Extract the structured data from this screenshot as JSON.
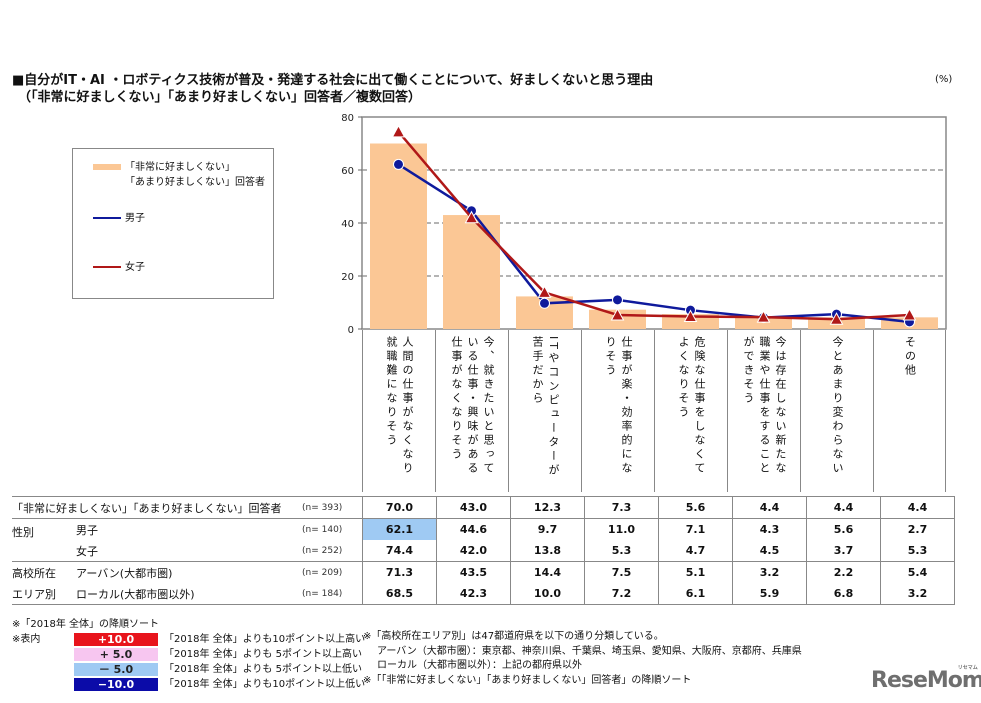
{
  "header": {
    "title_line1": "■自分がIT・AI ・ロボティクス技術が普及・発達する社会に出て働くことについて、好ましくないと思う理由",
    "title_line2": "（「非常に好ましくない」「あまり好ましくない」回答者／複数回答）",
    "unit": "(%)"
  },
  "legend": {
    "bar_label_line1": "「非常に好ましくない」",
    "bar_label_line2": "「あまり好ましくない」回答者",
    "male_label": "男子",
    "female_label": "女子"
  },
  "colors": {
    "bar": "#fbc795",
    "male": "#0f1a9c",
    "female": "#b01818",
    "grid": "#888888",
    "highlight_plus10": "#e8141c",
    "highlight_plus5": "#f7c6f0",
    "highlight_minus5": "#9fcaf3",
    "highlight_minus10": "#0b0ba8"
  },
  "chart_data": {
    "type": "bar",
    "title": "自分がIT・AI ・ロボティクス技術が普及・発達する社会に出て働くことについて、好ましくないと思う理由",
    "subtitle": "（「非常に好ましくない」「あまり好ましくない」回答者／複数回答）",
    "xlabel": "",
    "ylabel": "(%)",
    "ylim": [
      0,
      80
    ],
    "yticks": [
      0,
      20,
      40,
      60,
      80
    ],
    "grid": "dashed horizontal at 20/40/60",
    "legend_position": "left box",
    "categories": [
      "人間の仕事がなくなり就職難になりそう",
      "今、就きたいと思っている仕事・興味がある仕事がなくなりそう",
      "ITやコンピューターが苦手だから",
      "仕事が楽・効率的になりそう",
      "危険な仕事をしなくてよくなりそう",
      "今は存在しない新たな職業や仕事をすることができそう",
      "今とあまり変わらない",
      "その他"
    ],
    "series": [
      {
        "name": "「非常に好ましくない」「あまり好ましくない」回答者",
        "type": "bar",
        "values": [
          70.0,
          43.0,
          12.3,
          7.3,
          5.6,
          4.4,
          4.4,
          4.4
        ]
      },
      {
        "name": "男子",
        "type": "line",
        "marker": "circle",
        "values": [
          62.1,
          44.6,
          9.7,
          11.0,
          7.1,
          4.3,
          5.6,
          2.7
        ]
      },
      {
        "name": "女子",
        "type": "line",
        "marker": "triangle",
        "values": [
          74.4,
          42.0,
          13.8,
          5.3,
          4.7,
          4.5,
          3.7,
          5.3
        ]
      }
    ]
  },
  "table": {
    "rows": [
      {
        "group": "",
        "label": "「非常に好ましくない」「あまり好ましくない」回答者",
        "n": "(n= 393)",
        "values": [
          "70.0",
          "43.0",
          "12.3",
          "7.3",
          "5.6",
          "4.4",
          "4.4",
          "4.4"
        ]
      },
      {
        "group": "性別",
        "label": "男子",
        "n": "(n= 140)",
        "values": [
          "62.1",
          "44.6",
          "9.7",
          "11.0",
          "7.1",
          "4.3",
          "5.6",
          "2.7"
        ],
        "highlight": {
          "0": "minus5"
        }
      },
      {
        "group": "",
        "label": "女子",
        "n": "(n= 252)",
        "values": [
          "74.4",
          "42.0",
          "13.8",
          "5.3",
          "4.7",
          "4.5",
          "3.7",
          "5.3"
        ]
      },
      {
        "group": "高校所在",
        "label": "アーバン(大都市圏)",
        "n": "(n= 209)",
        "values": [
          "71.3",
          "43.5",
          "14.4",
          "7.5",
          "5.1",
          "3.2",
          "2.2",
          "5.4"
        ]
      },
      {
        "group": "エリア別",
        "label": "ローカル(大都市圏以外)",
        "n": "(n= 184)",
        "values": [
          "68.5",
          "42.3",
          "10.0",
          "7.2",
          "6.1",
          "5.9",
          "6.8",
          "3.2"
        ]
      }
    ]
  },
  "notes": {
    "sort_note": "※「2018年 全体」の降順ソート",
    "table_key_label": "※表内",
    "keys": [
      {
        "box": "+10.0",
        "text": "「2018年 全体」よりも10ポイント以上高い"
      },
      {
        "box": "+ 5.0",
        "text": "「2018年 全体」よりも 5ポイント以上高い"
      },
      {
        "box": "－ 5.0",
        "text": "「2018年 全体」よりも 5ポイント以上低い"
      },
      {
        "box": "−10.0",
        "text": "「2018年 全体」よりも10ポイント以上低い"
      }
    ],
    "area_note": "※「高校所在エリア別」は47都道府県を以下の通り分類している。",
    "urban_note": "アーバン（大都市圏）：東京都、神奈川県、千葉県、埼玉県、愛知県、大阪府、京都府、兵庫県",
    "local_note": "ローカル（大都市圏以外）：上記の都府県以外",
    "sort_note2": "※「「非常に好ましくない」「あまり好ましくない」回答者」の降順ソート"
  },
  "logo": {
    "text": "ReseMom",
    "kana": "リセマム"
  }
}
